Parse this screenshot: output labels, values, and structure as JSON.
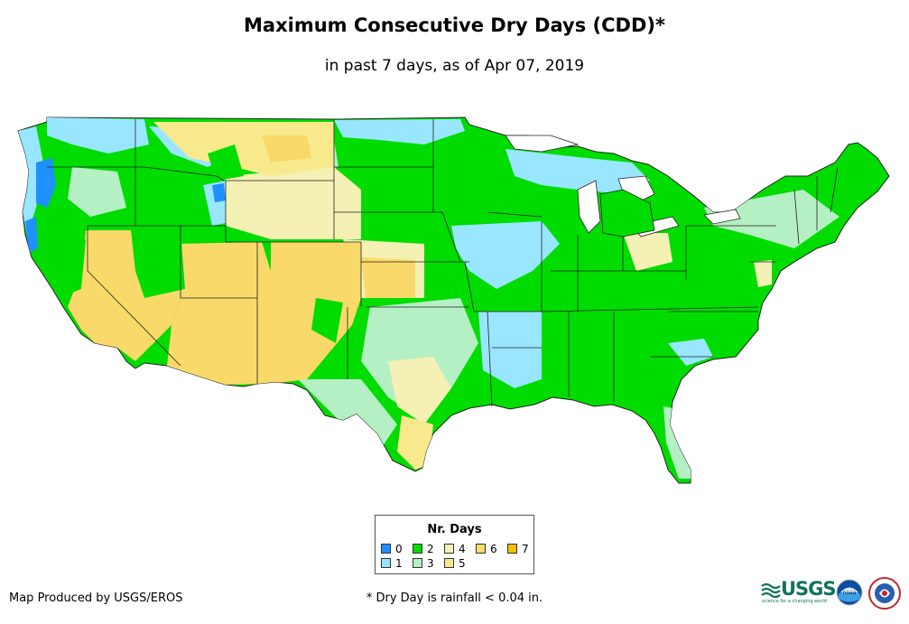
{
  "title": "Maximum Consecutive Dry Days (CDD)*",
  "subtitle": "in past 7 days, as of Apr 07, 2019",
  "legend": {
    "title": "Nr. Days",
    "items": [
      {
        "label": "0",
        "color": "#1e90ff"
      },
      {
        "label": "1",
        "color": "#98e6ff"
      },
      {
        "label": "2",
        "color": "#00dc00"
      },
      {
        "label": "3",
        "color": "#b4f0c3"
      },
      {
        "label": "4",
        "color": "#f5f0b4"
      },
      {
        "label": "5",
        "color": "#f8ea8c"
      },
      {
        "label": "6",
        "color": "#f8d96a"
      },
      {
        "label": "7",
        "color": "#f5c000"
      }
    ]
  },
  "credit": "Map Produced by USGS/EROS",
  "footnote": "* Dry Day is rainfall < 0.04 in.",
  "logos": {
    "usgs": "USGS",
    "usgs_tagline": "science for a changing world",
    "noaa": "noaa"
  }
}
